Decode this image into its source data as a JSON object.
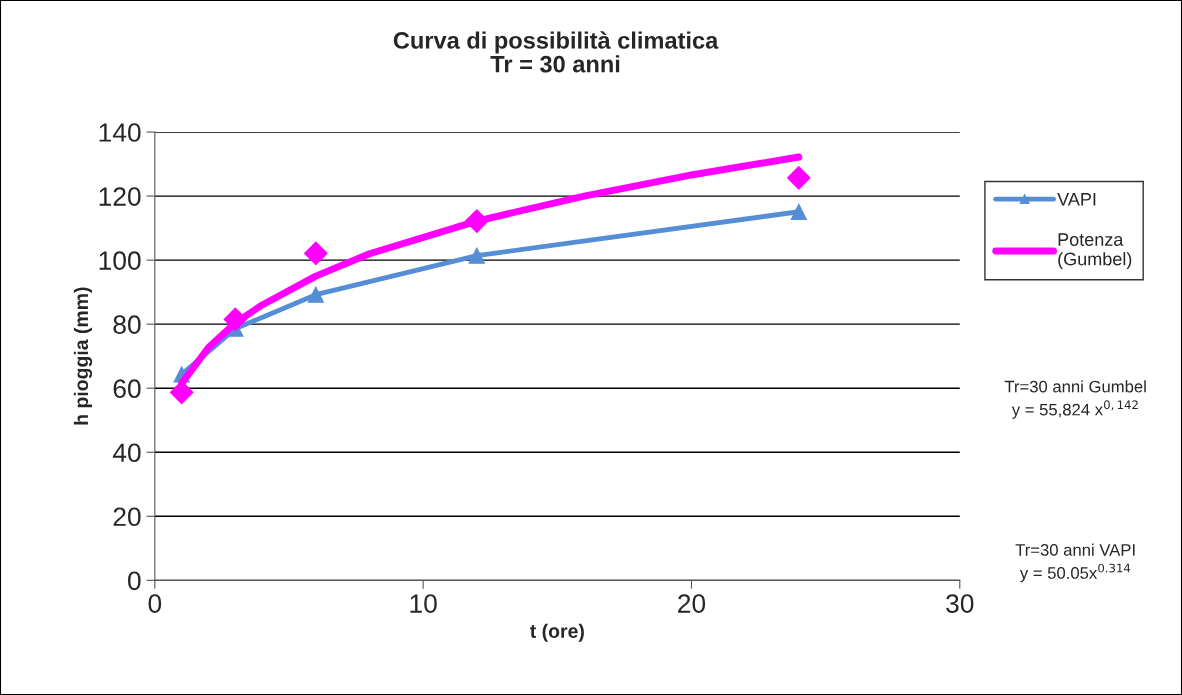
{
  "chart_data": {
    "type": "line",
    "title": "Curva di possibilità climatica\nTr = 30 anni",
    "xlabel": "t (ore)",
    "ylabel": "h pioggia (mm)",
    "x": [
      1,
      3,
      6,
      12,
      24
    ],
    "series": [
      {
        "name": "VAPI",
        "color": "#558ed5",
        "marker": "triangle",
        "values": [
          64.3,
          78.6,
          89.2,
          101.4,
          115.1
        ]
      },
      {
        "type": "scatter",
        "color": "#ff00ff",
        "marker": "diamond",
        "values": [
          58.7,
          81.5,
          102.1,
          112.2,
          125.7
        ]
      },
      {
        "name": "Potenza\n(Gumbel)",
        "color": "#ff00ff",
        "marker": "none",
        "x": [
          1,
          2,
          3,
          4,
          6,
          8,
          12,
          16,
          20,
          24
        ],
        "values": [
          61.5,
          72.7,
          80.4,
          86,
          95,
          102,
          112.2,
          120,
          126.6,
          132.2
        ]
      }
    ],
    "xlim": [
      0,
      30
    ],
    "xticks": [
      0,
      10,
      20,
      30
    ],
    "ylim": [
      0,
      140
    ],
    "yticks": [
      0,
      20,
      40,
      60,
      80,
      100,
      120,
      140
    ],
    "grid": "y",
    "legend": "right",
    "annotations": [
      "Tr=30 anni Gumbel\ny = 55,824 x$^{0,142}$",
      "Tr=30 anni VAPI\ny = 50.05x$^{0.314}$"
    ]
  }
}
